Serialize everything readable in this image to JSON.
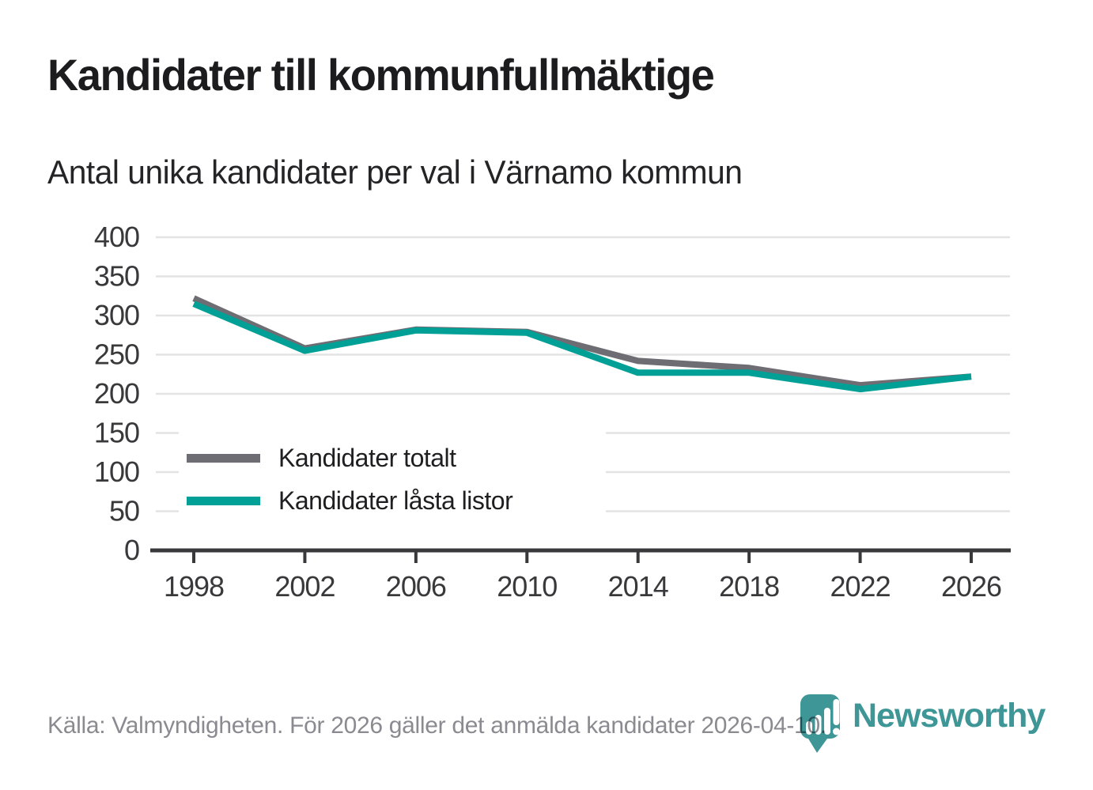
{
  "header": {
    "title": "Kandidater till kommunfullmäktige",
    "subtitle": "Antal unika kandidater per val i Värnamo kommun"
  },
  "chart_data": {
    "type": "line",
    "title": "Kandidater till kommunfullmäktige",
    "subtitle": "Antal unika kandidater per val i Värnamo kommun",
    "x": [
      1998,
      2002,
      2006,
      2010,
      2014,
      2018,
      2022,
      2026
    ],
    "series": [
      {
        "name": "Kandidater totalt",
        "color": "#6e6d73",
        "values": [
          322,
          258,
          282,
          279,
          242,
          233,
          211,
          222
        ]
      },
      {
        "name": "Kandidater låsta listor",
        "color": "#00a096",
        "values": [
          315,
          255,
          281,
          278,
          227,
          227,
          206,
          222
        ]
      }
    ],
    "xlabel": "",
    "ylabel": "",
    "ylim": [
      0,
      400
    ],
    "ytick_step": 50,
    "grid": true,
    "legend_position": "inside-left-middle",
    "gridline_color": "#e3e3e3",
    "axis_color": "#39393b",
    "tick_label_color": "#39393b"
  },
  "footer": {
    "source": "Källa: Valmyndigheten. För 2026 gäller det anmälda kandidater 2026-04-10.",
    "logo_text": "Newsworthy",
    "logo_color": "#3e9697"
  }
}
